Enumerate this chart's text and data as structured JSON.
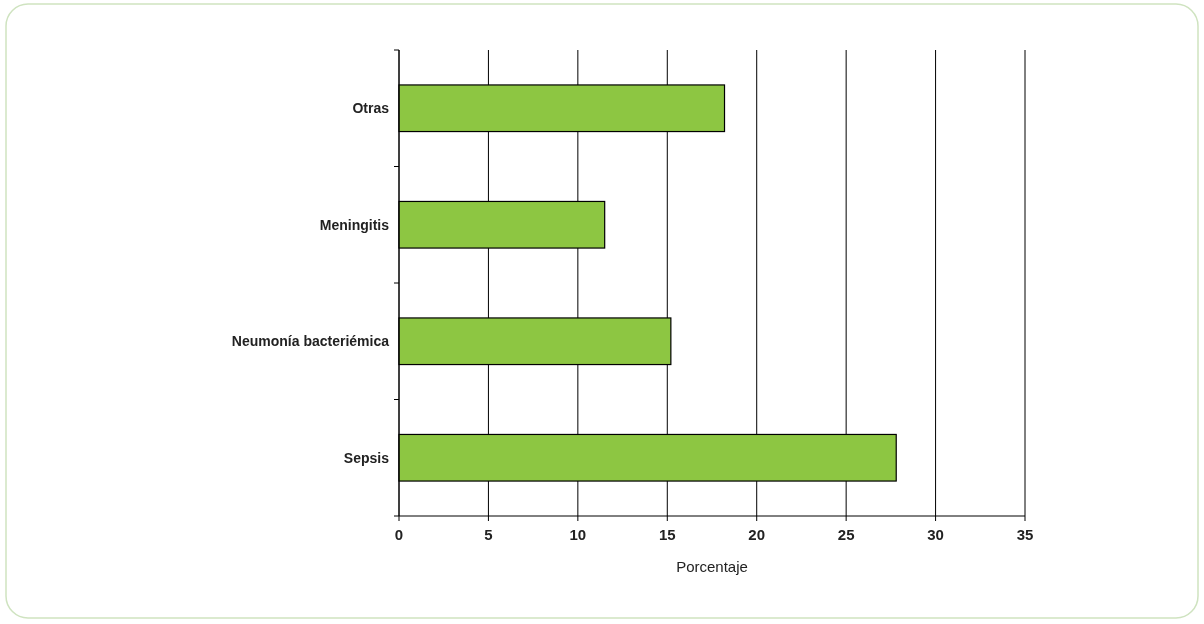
{
  "chart_data": {
    "type": "bar",
    "orientation": "horizontal",
    "categories": [
      "Otras",
      "Meningitis",
      "Neumonía bacteriémica",
      "Sepsis"
    ],
    "values": [
      18.2,
      11.5,
      15.2,
      27.8
    ],
    "color": "#8dc642",
    "xlabel": "Porcentaje",
    "xlim": [
      0,
      35
    ],
    "xticks": [
      0,
      5,
      10,
      15,
      20,
      25,
      30,
      35
    ],
    "grid": "x"
  }
}
